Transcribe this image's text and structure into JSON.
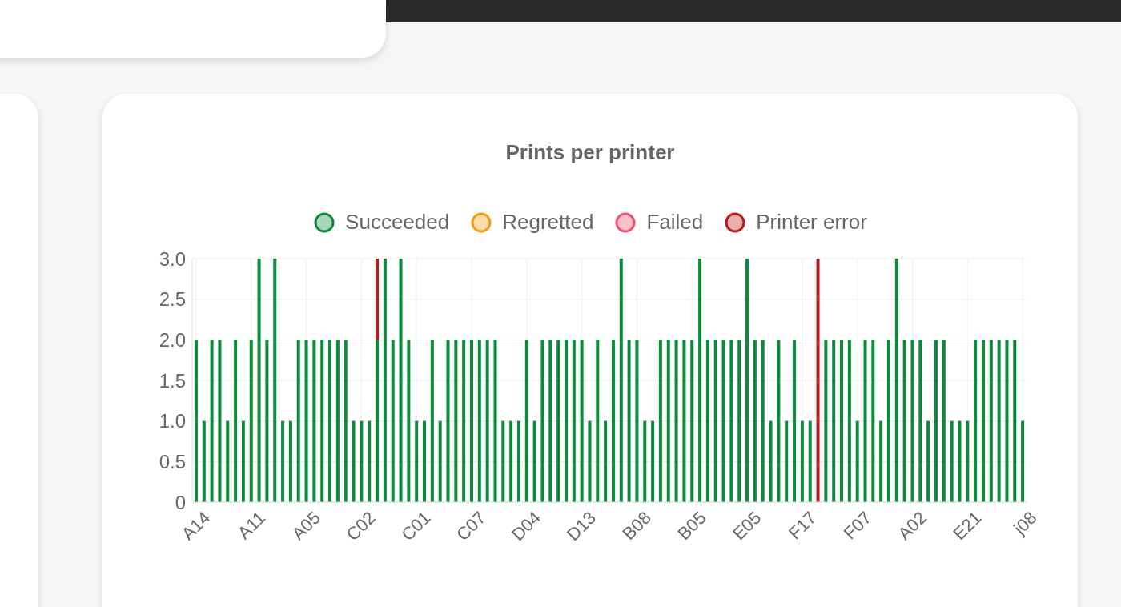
{
  "chart_data": {
    "type": "bar",
    "title": "Prints per printer",
    "stacked": true,
    "legend": "top",
    "grid": true,
    "categories": [
      "A14",
      null,
      null,
      null,
      null,
      null,
      null,
      "A11",
      null,
      null,
      null,
      null,
      null,
      null,
      "A05",
      null,
      null,
      null,
      null,
      null,
      null,
      "C02",
      null,
      null,
      null,
      null,
      null,
      null,
      "C01",
      null,
      null,
      null,
      null,
      null,
      null,
      "C07",
      null,
      null,
      null,
      null,
      null,
      null,
      "D04",
      null,
      null,
      null,
      null,
      null,
      null,
      "D13",
      null,
      null,
      null,
      null,
      null,
      null,
      "B08",
      null,
      null,
      null,
      null,
      null,
      null,
      "B05",
      null,
      null,
      null,
      null,
      null,
      null,
      "E05",
      null,
      null,
      null,
      null,
      null,
      null,
      "F17",
      null,
      null,
      null,
      null,
      null,
      null,
      "F07",
      null,
      null,
      null,
      null,
      null,
      null,
      "A02",
      null,
      null,
      null,
      null,
      null,
      null,
      "E21",
      null,
      null,
      null,
      null,
      null,
      null,
      "j08"
    ],
    "series": [
      {
        "name": "Succeeded",
        "color": "#0a8a3a",
        "values": [
          2,
          1,
          2,
          2,
          1,
          2,
          1,
          2,
          3,
          2,
          3,
          1,
          1,
          2,
          2,
          2,
          2,
          2,
          2,
          2,
          1,
          1,
          1,
          2,
          3,
          2,
          3,
          2,
          1,
          1,
          2,
          1,
          2,
          2,
          2,
          2,
          2,
          2,
          2,
          1,
          1,
          1,
          2,
          1,
          2,
          2,
          2,
          2,
          2,
          2,
          1,
          2,
          1,
          2,
          3,
          2,
          2,
          1,
          1,
          2,
          2,
          2,
          2,
          2,
          3,
          2,
          2,
          2,
          2,
          2,
          3,
          2,
          2,
          1,
          2,
          1,
          2,
          1,
          1,
          0,
          2,
          2,
          2,
          2,
          1,
          2,
          2,
          1,
          2,
          3,
          2,
          2,
          2,
          1,
          2,
          2,
          1,
          1,
          1,
          2,
          2,
          2,
          2,
          2,
          2,
          1
        ]
      },
      {
        "name": "Regretted",
        "color": "#f39c12",
        "values": [
          0,
          0,
          0,
          0,
          0,
          0,
          0,
          0,
          0,
          0,
          0,
          0,
          0,
          0,
          0,
          0,
          0,
          0,
          0,
          0,
          0,
          0,
          0,
          0,
          0,
          0,
          0,
          0,
          0,
          0,
          0,
          0,
          0,
          0,
          0,
          0,
          0,
          0,
          0,
          0,
          0,
          0,
          0,
          0,
          0,
          0,
          0,
          0,
          0,
          0,
          0,
          0,
          0,
          0,
          0,
          0,
          0,
          0,
          0,
          0,
          0,
          0,
          0,
          0,
          0,
          0,
          0,
          0,
          0,
          0,
          0,
          0,
          0,
          0,
          0,
          0,
          0,
          0,
          0,
          0,
          0,
          0,
          0,
          0,
          0,
          0,
          0,
          0,
          0,
          0,
          0,
          0,
          0,
          0,
          0,
          0,
          0,
          0,
          0,
          0,
          0,
          0,
          0,
          0,
          0,
          0
        ]
      },
      {
        "name": "Failed",
        "color": "#f0506e",
        "values": [
          0,
          0,
          0,
          0,
          0,
          0,
          0,
          0,
          0,
          0,
          0,
          0,
          0,
          0,
          0,
          0,
          0,
          0,
          0,
          0,
          0,
          0,
          0,
          0,
          0,
          0,
          0,
          0,
          0,
          0,
          0,
          0,
          0,
          0,
          0,
          0,
          0,
          0,
          0,
          0,
          0,
          0,
          0,
          0,
          0,
          0,
          0,
          0,
          0,
          0,
          0,
          0,
          0,
          0,
          0,
          0,
          0,
          0,
          0,
          0,
          0,
          0,
          0,
          0,
          0,
          0,
          0,
          0,
          0,
          0,
          0,
          0,
          0,
          0,
          0,
          0,
          0,
          0,
          0,
          0,
          0,
          0,
          0,
          0,
          0,
          0,
          0,
          0,
          0,
          0,
          0,
          0,
          0,
          0,
          0,
          0,
          0,
          0,
          0,
          0,
          0,
          0,
          0,
          0,
          0,
          0
        ]
      },
      {
        "name": "Printer error",
        "color": "#b71c1c",
        "values": [
          0,
          0,
          0,
          0,
          0,
          0,
          0,
          0,
          0,
          0,
          0,
          0,
          0,
          0,
          0,
          0,
          0,
          0,
          0,
          0,
          0,
          0,
          0,
          1,
          0,
          0,
          0,
          0,
          0,
          0,
          0,
          0,
          0,
          0,
          0,
          0,
          0,
          0,
          0,
          0,
          0,
          0,
          0,
          0,
          0,
          0,
          0,
          0,
          0,
          0,
          0,
          0,
          0,
          0,
          0,
          0,
          0,
          0,
          0,
          0,
          0,
          0,
          0,
          0,
          0,
          0,
          0,
          0,
          0,
          0,
          0,
          0,
          0,
          0,
          0,
          0,
          0,
          0,
          0,
          3,
          0,
          0,
          0,
          0,
          0,
          0,
          0,
          0,
          0,
          0,
          0,
          0,
          0,
          0,
          0,
          0,
          0,
          0,
          0,
          0,
          0,
          0,
          0,
          0,
          0,
          0
        ]
      }
    ],
    "ylim": [
      0,
      3
    ],
    "yticks": [
      0,
      0.5,
      {
        "value": 1,
        "label": "1.0"
      },
      1.5,
      {
        "value": 2,
        "label": "2.0"
      },
      2.5,
      {
        "value": 3,
        "label": "3.0"
      }
    ]
  }
}
